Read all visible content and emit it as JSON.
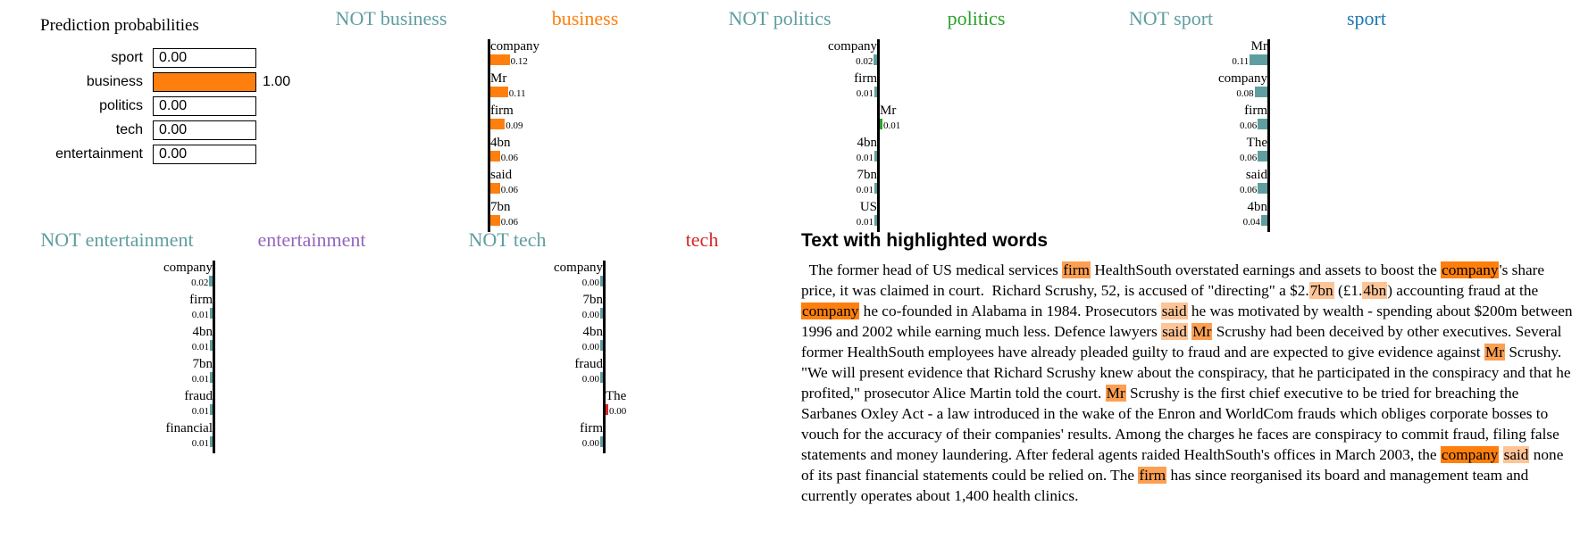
{
  "colors": {
    "orange": "#ff7f0e",
    "teal": "#5f9ea0",
    "green": "#2ca02c",
    "blue": "#1f77b4",
    "purple": "#9467bd",
    "red": "#d62728",
    "highlight_dark": "#ff7f0e",
    "highlight_mid": "#fc9f52",
    "highlight_light": "#fdc497"
  },
  "prediction": {
    "title": "Prediction probabilities",
    "rows": [
      {
        "label": "sport",
        "value": 0.0,
        "text": "0.00"
      },
      {
        "label": "business",
        "value": 1.0,
        "text": "1.00"
      },
      {
        "label": "politics",
        "value": 0.0,
        "text": "0.00"
      },
      {
        "label": "tech",
        "value": 0.0,
        "text": "0.00"
      },
      {
        "label": "entertainment",
        "value": 0.0,
        "text": "0.00"
      }
    ]
  },
  "chart_data": [
    {
      "type": "bar",
      "orientation": "horizontal",
      "left_title": "NOT business",
      "right_title": "business",
      "categories": [
        "company",
        "Mr",
        "firm",
        "4bn",
        "said",
        "7bn"
      ],
      "values": [
        0.12,
        0.11,
        0.09,
        0.06,
        0.06,
        0.06
      ],
      "value_labels": [
        "0.12",
        "0.11",
        "0.09",
        "0.06",
        "0.06",
        "0.06"
      ],
      "colors": [
        "#ff7f0e",
        "#ff7f0e",
        "#ff7f0e",
        "#ff7f0e",
        "#ff7f0e",
        "#ff7f0e"
      ]
    },
    {
      "type": "bar",
      "orientation": "horizontal",
      "left_title": "NOT politics",
      "right_title": "politics",
      "categories": [
        "company",
        "firm",
        "Mr",
        "4bn",
        "7bn",
        "US"
      ],
      "values": [
        -0.02,
        -0.01,
        0.01,
        -0.01,
        -0.01,
        -0.01
      ],
      "value_labels": [
        "0.02",
        "0.01",
        "0.01",
        "0.01",
        "0.01",
        "0.01"
      ],
      "colors": [
        "#5f9ea0",
        "#5f9ea0",
        "#2ca02c",
        "#5f9ea0",
        "#5f9ea0",
        "#5f9ea0"
      ]
    },
    {
      "type": "bar",
      "orientation": "horizontal",
      "left_title": "NOT sport",
      "right_title": "sport",
      "categories": [
        "Mr",
        "company",
        "firm",
        "The",
        "said",
        "4bn"
      ],
      "values": [
        -0.11,
        -0.08,
        -0.06,
        -0.06,
        -0.06,
        -0.04
      ],
      "value_labels": [
        "0.11",
        "0.08",
        "0.06",
        "0.06",
        "0.06",
        "0.04"
      ],
      "colors": [
        "#5f9ea0",
        "#5f9ea0",
        "#5f9ea0",
        "#5f9ea0",
        "#5f9ea0",
        "#5f9ea0"
      ]
    },
    {
      "type": "bar",
      "orientation": "horizontal",
      "left_title": "NOT entertainment",
      "right_title": "entertainment",
      "categories": [
        "company",
        "firm",
        "4bn",
        "7bn",
        "fraud",
        "financial"
      ],
      "values": [
        -0.02,
        -0.01,
        -0.01,
        -0.01,
        -0.01,
        -0.01
      ],
      "value_labels": [
        "0.02",
        "0.01",
        "0.01",
        "0.01",
        "0.01",
        "0.01"
      ],
      "colors": [
        "#5f9ea0",
        "#5f9ea0",
        "#5f9ea0",
        "#5f9ea0",
        "#5f9ea0",
        "#5f9ea0"
      ]
    },
    {
      "type": "bar",
      "orientation": "horizontal",
      "left_title": "NOT tech",
      "right_title": "tech",
      "categories": [
        "company",
        "7bn",
        "4bn",
        "fraud",
        "The",
        "firm"
      ],
      "values": [
        -0.001,
        -0.001,
        -0.001,
        -0.001,
        0.001,
        -0.001
      ],
      "value_labels": [
        "0.00",
        "0.00",
        "0.00",
        "0.00",
        "0.00",
        "0.00"
      ],
      "colors": [
        "#5f9ea0",
        "#5f9ea0",
        "#5f9ea0",
        "#5f9ea0",
        "#d62728",
        "#5f9ea0"
      ]
    }
  ],
  "title_colors": {
    "not": "#5f9ea0",
    "business": "#ff7f0e",
    "politics": "#2ca02c",
    "sport": "#1f77b4",
    "entertainment": "#9467bd",
    "tech": "#d62728"
  },
  "highlighted_text": {
    "title": "Text with highlighted words",
    "segments": [
      {
        "t": "  The former head of US medical services "
      },
      {
        "t": "firm",
        "h": "mid"
      },
      {
        "t": " HealthSouth overstated earnings and assets to boost the "
      },
      {
        "t": "company",
        "h": "dark"
      },
      {
        "t": "'s share price, it was claimed in court.  Richard Scrushy, 52, is accused of \"directing\" a $2."
      },
      {
        "t": "7bn",
        "h": "light"
      },
      {
        "t": " (£1."
      },
      {
        "t": "4bn",
        "h": "light"
      },
      {
        "t": ") accounting fraud at the "
      },
      {
        "t": "company",
        "h": "dark"
      },
      {
        "t": " he co-founded in Alabama in 1984. Prosecutors "
      },
      {
        "t": "said",
        "h": "light"
      },
      {
        "t": " he was motivated by wealth - spending about $200m between 1996 and 2002 while earning much less. Defence lawyers "
      },
      {
        "t": "said",
        "h": "light"
      },
      {
        "t": " "
      },
      {
        "t": "Mr",
        "h": "mid"
      },
      {
        "t": " Scrushy had been deceived by other executives. Several former HealthSouth employees have already pleaded guilty to fraud and are expected to give evidence against "
      },
      {
        "t": "Mr",
        "h": "mid"
      },
      {
        "t": " Scrushy.  \"We will present evidence that Richard Scrushy knew about the conspiracy, that he participated in the conspiracy and that he profited,\" prosecutor Alice Martin told the court. "
      },
      {
        "t": "Mr",
        "h": "mid"
      },
      {
        "t": " Scrushy is the first chief executive to be tried for breaching the Sarbanes Oxley Act - a law introduced in the wake of the Enron and WorldCom frauds which obliges corporate bosses to vouch for the accuracy of their companies' results. Among the charges he faces are conspiracy to commit fraud, filing false statements and money laundering. After federal agents raided HealthSouth's offices in March 2003, the "
      },
      {
        "t": "company",
        "h": "dark"
      },
      {
        "t": " "
      },
      {
        "t": "said",
        "h": "light"
      },
      {
        "t": " none of its past financial statements could be relied on. The "
      },
      {
        "t": "firm",
        "h": "mid"
      },
      {
        "t": " has since reorganised its board and management team and currently operates about 1,400 health clinics."
      }
    ]
  }
}
